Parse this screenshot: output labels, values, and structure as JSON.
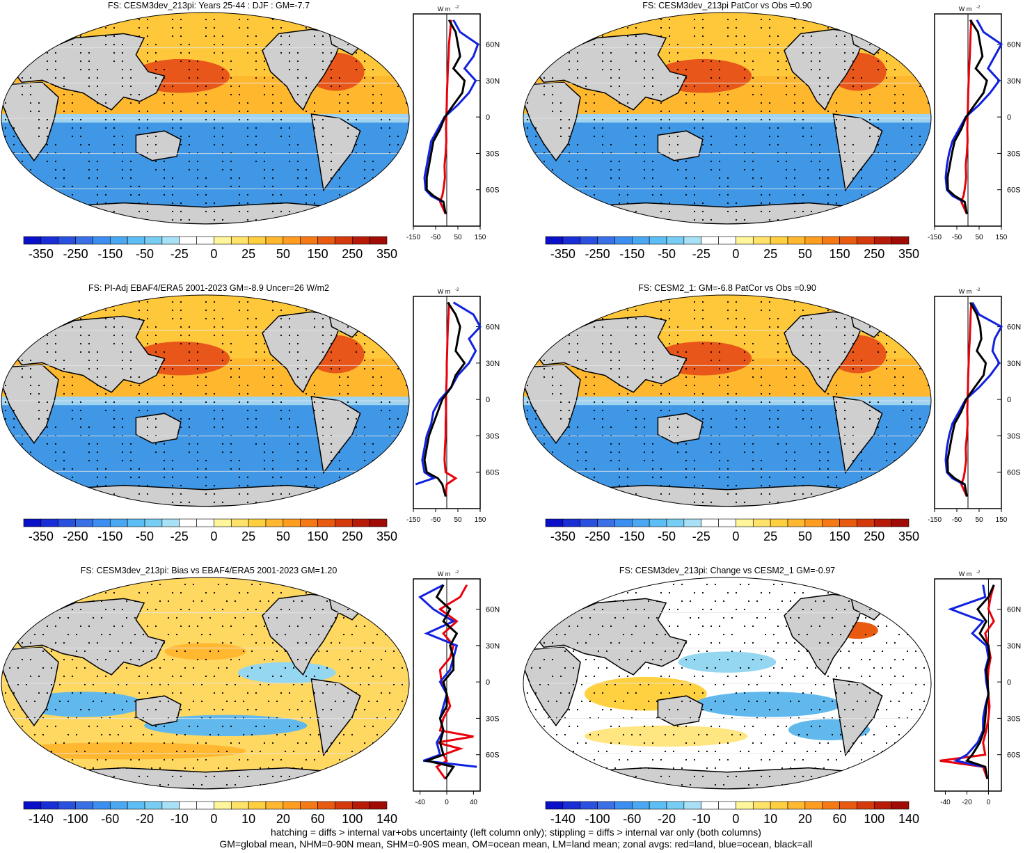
{
  "footer": {
    "line1": "hatching = diffs > internal var+obs uncertainty (left column only); stippling = diffs > internal var only (both columns)",
    "line2": "GM=global mean, NHM=0-90N mean, SHM=0-90S mean, OM=ocean mean, LM=land mean; zonal avgs: red=land, blue=ocean, black=all"
  },
  "colors": {
    "land": "#cfcfcf",
    "warm_scale": [
      "#fffcb0",
      "#ffe680",
      "#ffd040",
      "#ffb830",
      "#ff9d20",
      "#f57a15",
      "#e85a10",
      "#d43a0c",
      "#c01a08",
      "#a00c05"
    ],
    "cool_scale": [
      "#95d6f0",
      "#61b8ec",
      "#3fa0e8",
      "#2e86e0",
      "#2a70d8",
      "#2458cc",
      "#1a3ec0",
      "#0b22b0",
      "#0000a8"
    ],
    "zonal_land": "#e8000b",
    "zonal_ocean": "#1022e0",
    "zonal_all": "#000000"
  },
  "icons": {
    "map": "robinson-world-map-icon"
  },
  "chart_data": [
    {
      "type": "heatmap",
      "title": "FS: CESM3dev_213pi: Years 25-44 : DJF : GM=-7.7",
      "colorbar_labels": [
        "-350",
        "-250",
        "-150",
        "-50",
        "-25",
        "0",
        "25",
        "50",
        "150",
        "250",
        "350"
      ],
      "zonal": {
        "ylabels": [
          "60N",
          "30N",
          "0",
          "30S",
          "60S"
        ],
        "xlabels": [
          "-150",
          "-50",
          "50",
          "150"
        ],
        "xlim": [
          -150,
          150
        ],
        "unit_label": "W m",
        "unit_sup": "-2",
        "series": [
          {
            "name": "land",
            "lat": [
              80,
              70,
              60,
              50,
              40,
              30,
              20,
              10,
              0,
              -10,
              -20,
              -30,
              -40,
              -50,
              -60,
              -65,
              -70,
              -80
            ],
            "values": [
              20,
              15,
              10,
              8,
              5,
              3,
              1,
              0,
              -2,
              -3,
              -2,
              -5,
              -10,
              -8,
              -15,
              -20,
              -30,
              -5
            ]
          },
          {
            "name": "ocean",
            "lat": [
              80,
              70,
              60,
              50,
              40,
              30,
              20,
              10,
              0,
              -10,
              -20,
              -30,
              -40,
              -50,
              -60,
              -65,
              -70
            ],
            "values": [
              30,
              60,
              140,
              120,
              80,
              130,
              100,
              50,
              -10,
              -40,
              -70,
              -80,
              -90,
              -100,
              -95,
              -70,
              -20
            ]
          },
          {
            "name": "all",
            "lat": [
              80,
              70,
              60,
              50,
              40,
              30,
              20,
              10,
              0,
              -10,
              -20,
              -30,
              -40,
              -50,
              -60,
              -65,
              -70,
              -80
            ],
            "values": [
              10,
              40,
              50,
              60,
              30,
              80,
              70,
              30,
              -8,
              -30,
              -60,
              -70,
              -80,
              -90,
              -90,
              -60,
              -15,
              -5
            ]
          }
        ]
      }
    },
    {
      "type": "heatmap",
      "title": "FS: CESM3dev_213pi PatCor vs Obs =0.90",
      "colorbar_labels": [
        "-350",
        "-250",
        "-150",
        "-50",
        "-25",
        "0",
        "25",
        "50",
        "150",
        "250",
        "350"
      ],
      "zonal": {
        "ylabels": [
          "60N",
          "30N",
          "0",
          "30S",
          "60S"
        ],
        "xlabels": [
          "-150",
          "-50",
          "50",
          "150"
        ],
        "xlim": [
          -150,
          150
        ],
        "unit_label": "W m",
        "unit_sup": "-2",
        "series": [
          {
            "name": "land",
            "lat": [
              80,
              70,
              60,
              50,
              40,
              30,
              20,
              10,
              0,
              -10,
              -20,
              -30,
              -40,
              -50,
              -60,
              -65,
              -70,
              -80
            ],
            "values": [
              15,
              12,
              10,
              8,
              5,
              3,
              1,
              0,
              -2,
              -3,
              -2,
              -5,
              -10,
              -8,
              -15,
              -20,
              -30,
              -5
            ]
          },
          {
            "name": "ocean",
            "lat": [
              80,
              70,
              60,
              50,
              40,
              30,
              20,
              10,
              0,
              -10,
              -20,
              -30,
              -40,
              -50,
              -60,
              -65,
              -70
            ],
            "values": [
              40,
              70,
              150,
              120,
              90,
              140,
              100,
              50,
              -10,
              -40,
              -70,
              -85,
              -95,
              -100,
              -95,
              -70,
              -20
            ]
          },
          {
            "name": "all",
            "lat": [
              80,
              70,
              60,
              50,
              40,
              30,
              20,
              10,
              0,
              -10,
              -20,
              -30,
              -40,
              -50,
              -60,
              -65,
              -70,
              -80
            ],
            "values": [
              10,
              45,
              55,
              65,
              35,
              85,
              70,
              30,
              -8,
              -30,
              -60,
              -72,
              -82,
              -92,
              -90,
              -60,
              -15,
              -5
            ]
          }
        ]
      }
    },
    {
      "type": "heatmap",
      "title": "FS: PI-Adj EBAF4/ERA5 2001-2023 GM=-8.9 Uncer=26 W/m2",
      "colorbar_labels": [
        "-350",
        "-250",
        "-150",
        "-50",
        "-25",
        "0",
        "25",
        "50",
        "150",
        "250",
        "350"
      ],
      "zonal": {
        "ylabels": [
          "60N",
          "30N",
          "0",
          "30S",
          "60S"
        ],
        "xlabels": [
          "-150",
          "-50",
          "50",
          "150"
        ],
        "xlim": [
          -150,
          150
        ],
        "unit_label": "W m",
        "unit_sup": "-2",
        "series": [
          {
            "name": "land",
            "lat": [
              80,
              70,
              60,
              50,
              40,
              30,
              20,
              10,
              0,
              -10,
              -20,
              -30,
              -40,
              -50,
              -60,
              -65,
              -70,
              -80
            ],
            "values": [
              10,
              8,
              5,
              3,
              2,
              0,
              0,
              -2,
              -4,
              -3,
              -5,
              -5,
              -8,
              -10,
              -5,
              40,
              0,
              -5
            ]
          },
          {
            "name": "ocean",
            "lat": [
              80,
              70,
              60,
              50,
              40,
              30,
              20,
              10,
              0,
              -10,
              -20,
              -30,
              -40,
              -50,
              -60,
              -65,
              -70
            ],
            "values": [
              30,
              120,
              150,
              100,
              130,
              100,
              50,
              20,
              -30,
              -60,
              -70,
              -90,
              -100,
              -110,
              -100,
              -60,
              -140
            ]
          },
          {
            "name": "all",
            "lat": [
              80,
              70,
              60,
              50,
              40,
              30,
              20,
              10,
              0,
              -10,
              -20,
              -30,
              -40,
              -50,
              -60,
              -65,
              -70,
              -80
            ],
            "values": [
              5,
              40,
              60,
              50,
              40,
              80,
              40,
              20,
              -20,
              -40,
              -60,
              -80,
              -90,
              -100,
              -90,
              -40,
              -20,
              -5
            ]
          }
        ]
      }
    },
    {
      "type": "heatmap",
      "title": "FS: CESM2_1: GM=-6.8 PatCor vs Obs =0.90",
      "colorbar_labels": [
        "-350",
        "-250",
        "-150",
        "-50",
        "-25",
        "0",
        "25",
        "50",
        "150",
        "250",
        "350"
      ],
      "zonal": {
        "ylabels": [
          "60N",
          "30N",
          "0",
          "30S",
          "60S"
        ],
        "xlabels": [
          "-150",
          "-50",
          "50",
          "150"
        ],
        "xlim": [
          -150,
          150
        ],
        "unit_label": "W m",
        "unit_sup": "-2",
        "series": [
          {
            "name": "land",
            "lat": [
              80,
              70,
              60,
              50,
              40,
              30,
              20,
              10,
              0,
              -10,
              -20,
              -30,
              -40,
              -50,
              -60,
              -65,
              -70,
              -80
            ],
            "values": [
              15,
              12,
              10,
              8,
              5,
              3,
              1,
              0,
              -2,
              -3,
              -2,
              -5,
              -10,
              -8,
              -15,
              -20,
              -30,
              -5
            ]
          },
          {
            "name": "ocean",
            "lat": [
              80,
              70,
              60,
              50,
              40,
              30,
              20,
              10,
              0,
              -10,
              -20,
              -30,
              -40,
              -50,
              -60,
              -65,
              -70
            ],
            "values": [
              20,
              50,
              150,
              120,
              110,
              140,
              100,
              50,
              -10,
              -40,
              -70,
              -85,
              -95,
              -100,
              -95,
              -70,
              -20
            ]
          },
          {
            "name": "all",
            "lat": [
              80,
              70,
              60,
              50,
              40,
              30,
              20,
              10,
              0,
              -10,
              -20,
              -30,
              -40,
              -50,
              -60,
              -65,
              -70,
              -80
            ],
            "values": [
              10,
              40,
              55,
              60,
              40,
              80,
              70,
              30,
              -8,
              -30,
              -60,
              -72,
              -82,
              -92,
              -90,
              -60,
              -15,
              -5
            ]
          }
        ]
      }
    },
    {
      "type": "heatmap",
      "title": "FS: CESM3dev_213pi: Bias vs EBAF4/ERA5 2001-2023 GM=1.20",
      "colorbar_labels": [
        "-140",
        "-100",
        "-60",
        "-20",
        "-10",
        "0",
        "10",
        "20",
        "60",
        "100",
        "140"
      ],
      "zonal": {
        "ylabels": [
          "60N",
          "30N",
          "0",
          "30S",
          "60S"
        ],
        "xlabels": [
          "-40",
          "0",
          "40"
        ],
        "xlim": [
          -50,
          50
        ],
        "unit_label": "W m",
        "unit_sup": "-2",
        "series": [
          {
            "name": "land",
            "lat": [
              80,
              70,
              60,
              50,
              40,
              30,
              20,
              10,
              0,
              -10,
              -20,
              -30,
              -40,
              -45,
              -50,
              -55,
              -60,
              -65,
              -70,
              -80
            ],
            "values": [
              30,
              20,
              -10,
              15,
              -5,
              10,
              5,
              -10,
              -8,
              0,
              5,
              -5,
              -10,
              40,
              -15,
              20,
              -5,
              0,
              -15,
              -2
            ]
          },
          {
            "name": "ocean",
            "lat": [
              80,
              70,
              60,
              50,
              40,
              30,
              20,
              10,
              0,
              -10,
              -20,
              -30,
              -40,
              -50,
              -60,
              -65,
              -70
            ],
            "values": [
              -5,
              -40,
              -20,
              10,
              -30,
              15,
              10,
              5,
              -10,
              0,
              -5,
              -10,
              -5,
              -15,
              -10,
              -35,
              45
            ]
          },
          {
            "name": "all",
            "lat": [
              80,
              70,
              60,
              50,
              40,
              30,
              20,
              10,
              0,
              -10,
              -20,
              -30,
              -40,
              -50,
              -60,
              -65,
              -70,
              -80
            ],
            "values": [
              -5,
              -15,
              5,
              -5,
              15,
              5,
              10,
              10,
              -5,
              0,
              0,
              -10,
              -5,
              -10,
              -5,
              -30,
              10,
              -2
            ]
          }
        ]
      }
    },
    {
      "type": "heatmap",
      "title": "FS: CESM3dev_213pi: Change vs CESM2_1 GM=-0.97",
      "colorbar_labels": [
        "-140",
        "-100",
        "-60",
        "-20",
        "-10",
        "0",
        "10",
        "20",
        "60",
        "100",
        "140"
      ],
      "zonal": {
        "ylabels": [
          "60N",
          "30N",
          "0",
          "30S",
          "60S"
        ],
        "xlabels": [
          "-40",
          "-20",
          "0"
        ],
        "xlim": [
          -50,
          12
        ],
        "unit_label": "W m",
        "unit_sup": "-2",
        "series": [
          {
            "name": "land",
            "lat": [
              80,
              70,
              60,
              50,
              40,
              30,
              20,
              10,
              0,
              -10,
              -20,
              -30,
              -40,
              -50,
              -60,
              -65,
              -70,
              -80
            ],
            "values": [
              5,
              2,
              0,
              5,
              -3,
              0,
              2,
              0,
              -1,
              0,
              1,
              0,
              -2,
              -5,
              -3,
              -45,
              -5,
              -1
            ]
          },
          {
            "name": "ocean",
            "lat": [
              80,
              70,
              60,
              50,
              40,
              30,
              20,
              10,
              0,
              -10,
              -20,
              -30,
              -40,
              -50,
              -60,
              -65,
              -70
            ],
            "values": [
              -5,
              -3,
              -35,
              -5,
              -15,
              -2,
              0,
              -3,
              -2,
              0,
              -3,
              -5,
              -5,
              -10,
              -20,
              -30,
              -5
            ]
          },
          {
            "name": "all",
            "lat": [
              80,
              70,
              60,
              50,
              40,
              30,
              20,
              10,
              0,
              -10,
              -20,
              -30,
              -40,
              -50,
              -60,
              -65,
              -70,
              -80
            ],
            "values": [
              5,
              0,
              -10,
              -2,
              -8,
              0,
              1,
              -2,
              -1,
              0,
              -2,
              -3,
              -4,
              -8,
              -15,
              -20,
              -3,
              -1
            ]
          }
        ]
      }
    }
  ]
}
